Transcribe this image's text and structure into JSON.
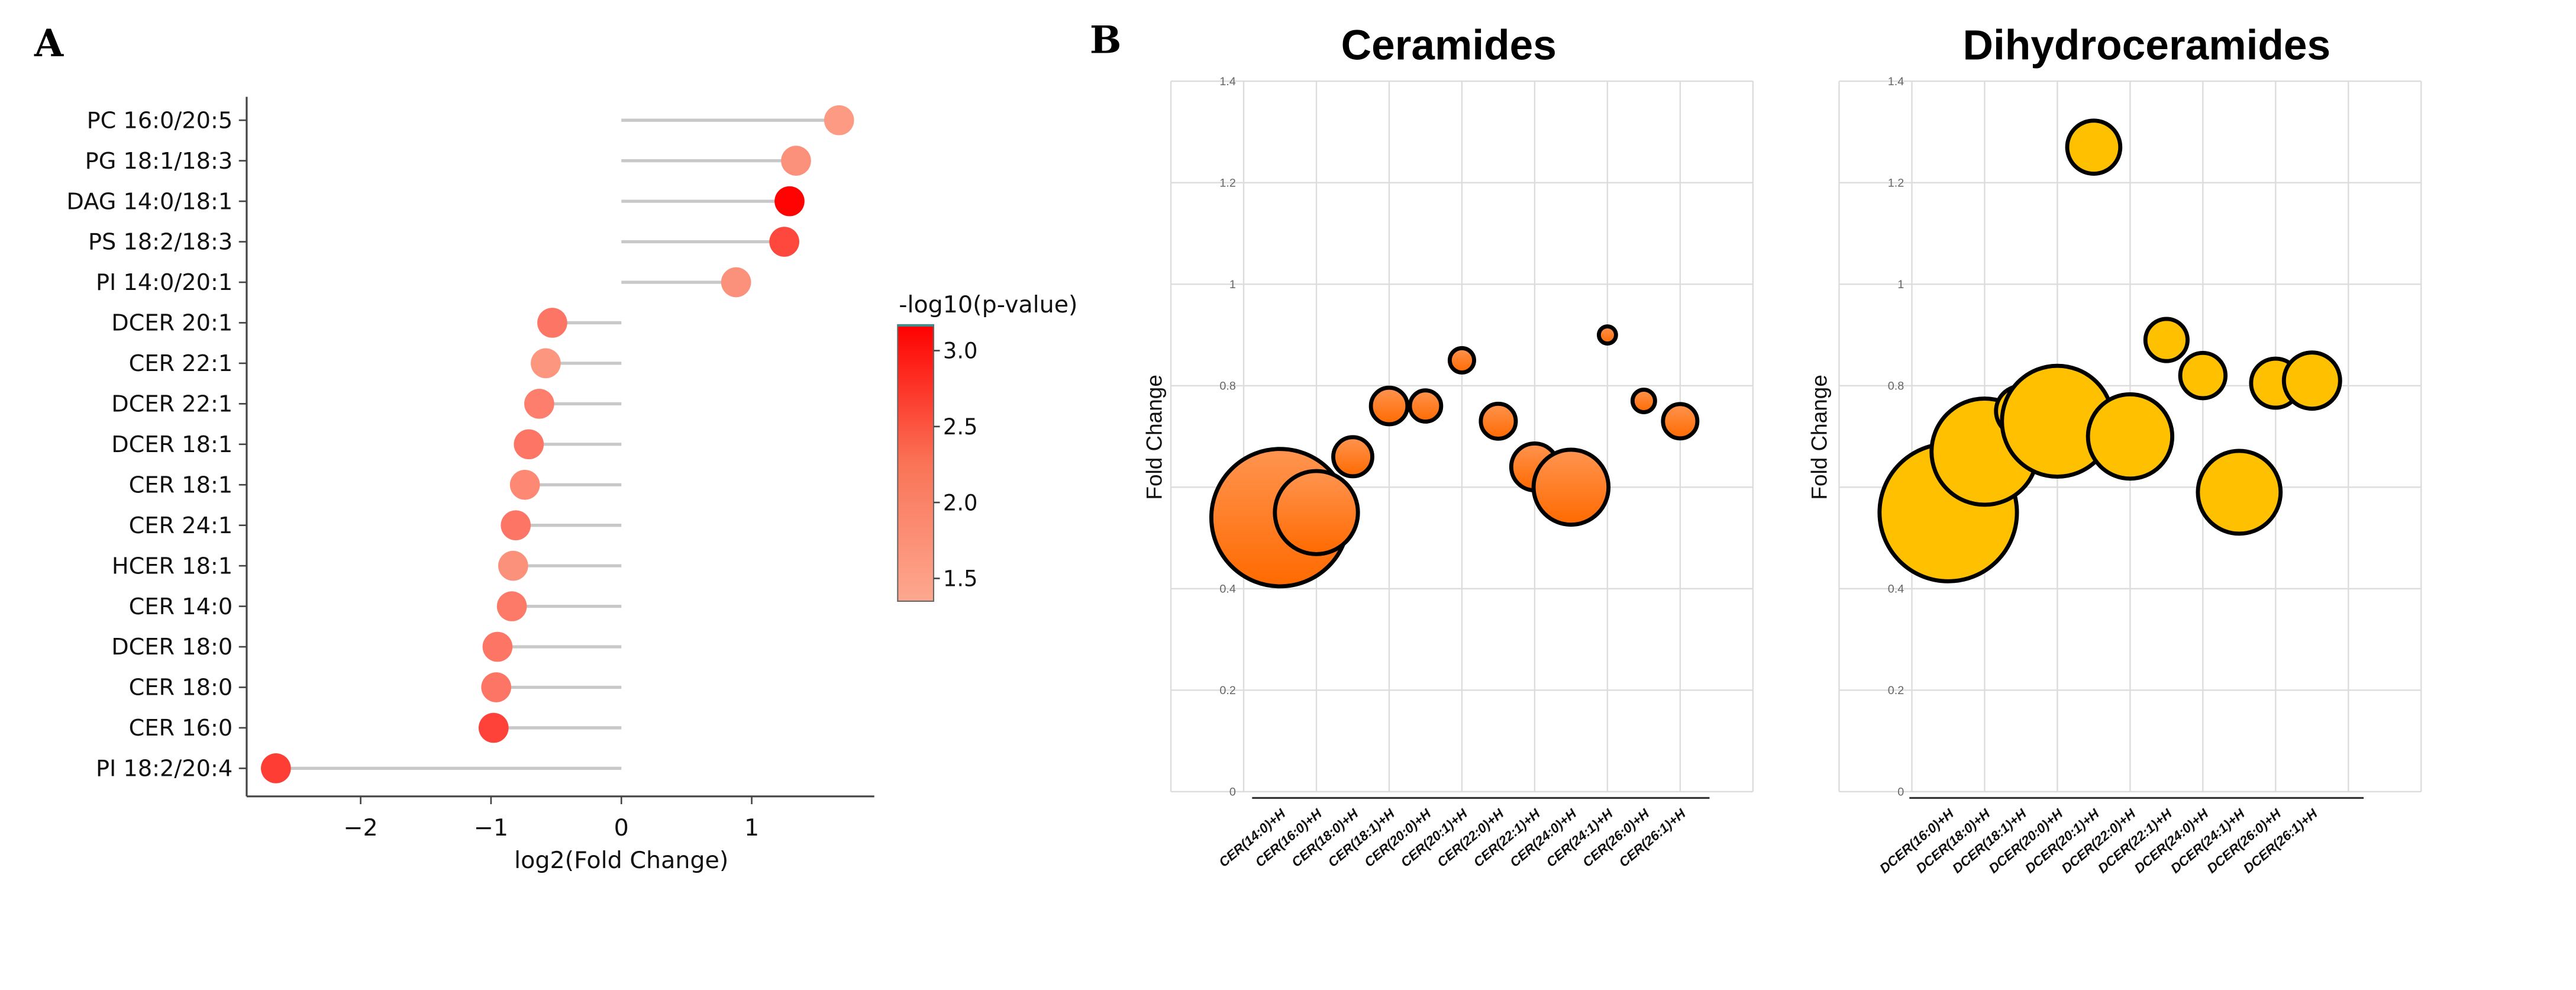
{
  "panel_letters": {
    "a": "A",
    "b": "B"
  },
  "chart_data": [
    {
      "type": "lollipop",
      "panel": "A",
      "xlabel": "log2(Fold Change)",
      "xlim": [
        -2.85,
        1.9
      ],
      "xticks": [
        -2,
        -1,
        0,
        1
      ],
      "colorbar": {
        "title": "-log10(p-value)",
        "range": [
          1.35,
          3.17
        ],
        "ticks": [
          "3.0",
          "2.5",
          "2.0",
          "1.5"
        ],
        "tick_values": [
          3.0,
          2.5,
          2.0,
          1.5
        ],
        "low_color": "#fca88f",
        "high_color": "#ff0000"
      },
      "categories": [
        "PC 16:0/20:5",
        "PG 18:1/18:3",
        "DAG 14:0/18:1",
        "PS 18:2/18:3",
        "PI 14:0/20:1",
        "DCER 20:1",
        "CER 22:1",
        "DCER 22:1",
        "DCER 18:1",
        "CER 18:1",
        "CER 24:1",
        "HCER 18:1",
        "CER 14:0",
        "DCER 18:0",
        "CER 18:0",
        "CER 16:0",
        "PI 18:2/20:4"
      ],
      "values": [
        1.67,
        1.34,
        1.29,
        1.25,
        0.88,
        -0.53,
        -0.58,
        -0.63,
        -0.71,
        -0.74,
        -0.81,
        -0.83,
        -0.84,
        -0.95,
        -0.96,
        -0.98,
        -2.65
      ],
      "neglog10_p": [
        1.5,
        1.6,
        3.15,
        2.4,
        1.6,
        1.9,
        1.55,
        1.8,
        1.9,
        1.7,
        1.9,
        1.6,
        1.85,
        1.9,
        1.9,
        2.45,
        2.5
      ]
    },
    {
      "type": "bubble",
      "panel": "B",
      "title": "Ceramides",
      "ylabel": "Fold Change",
      "ylim": [
        0,
        1.4
      ],
      "yticks": [
        "0",
        "0.2",
        "0.4",
        "0.6",
        "0.8",
        "1",
        "1.2",
        "1.4"
      ],
      "ytick_values": [
        0,
        0.2,
        0.4,
        0.6,
        0.8,
        1,
        1.2,
        1.4
      ],
      "color": "#ff7a1a",
      "categories": [
        "CER(14:0)+H",
        "CER(16:0)+H",
        "CER(18:0)+H",
        "CER(18:1)+H",
        "CER(20:0)+H",
        "CER(20:1)+H",
        "CER(22:0)+H",
        "CER(22:1)+H",
        "CER(24:0)+H",
        "CER(24:1)+H",
        "CER(26:0)+H",
        "CER(26:1)+H"
      ],
      "values": [
        0.54,
        0.55,
        0.66,
        0.76,
        0.76,
        0.85,
        0.73,
        0.64,
        0.6,
        0.9,
        0.77,
        0.73
      ],
      "bubble_size": [
        44,
        26.6,
        12.5,
        11.7,
        10,
        7.8,
        11.2,
        15,
        24,
        5.5,
        7.2,
        11
      ]
    },
    {
      "type": "bubble",
      "panel": "B",
      "title": "Dihydroceramides",
      "ylabel": "Fold Change",
      "ylim": [
        0,
        1.4
      ],
      "yticks": [
        "0",
        "0.2",
        "0.4",
        "0.6",
        "0.8",
        "1",
        "1.2",
        "1.4"
      ],
      "ytick_values": [
        0,
        0.2,
        0.4,
        0.6,
        0.8,
        1,
        1.2,
        1.4
      ],
      "color": "#ffc000",
      "categories": [
        "DCER(16:0)+H",
        "DCER(18:0)+H",
        "DCER(18:1)+H",
        "DCER(20:0)+H",
        "DCER(20:1)+H",
        "DCER(22:0)+H",
        "DCER(22:1)+H",
        "DCER(24:0)+H",
        "DCER(24:1)+H",
        "DCER(26:0)+H",
        "DCER(26:1)+H"
      ],
      "values": [
        0.55,
        0.67,
        0.75,
        0.73,
        1.27,
        0.7,
        0.89,
        0.82,
        0.59,
        0.805,
        0.81
      ],
      "bubble_size": [
        44,
        34,
        16,
        35.5,
        17,
        27,
        13.5,
        14.5,
        26.5,
        15.7,
        18
      ]
    }
  ]
}
